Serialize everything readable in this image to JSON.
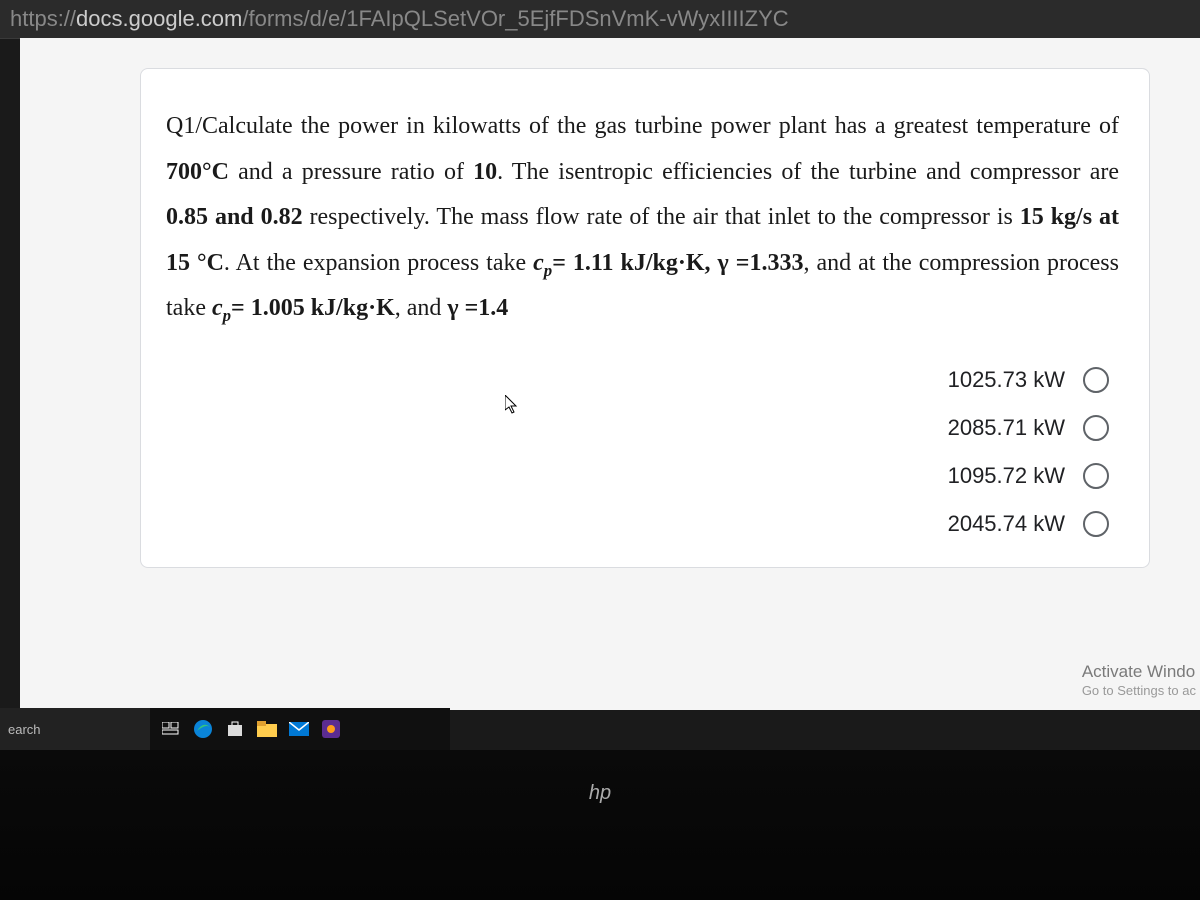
{
  "url": {
    "scheme": "https://",
    "host": "docs.google.com",
    "path": "/forms/d/e/1FAIpQLSetVOr_5EjfFDSnVmK-vWyxIIIIZYC"
  },
  "question": {
    "html": "Q1/Calculate the power in kilowatts of the gas turbine power plant has a greatest temperature of <b>700°C</b> and a pressure ratio of <b>10</b>. The isentropic efficiencies of the turbine and compressor are <b>0.85 and 0.82</b> respectively. The mass flow rate of the air that inlet to the compressor is <b>15 kg/s at 15 °C</b>. At the expansion process take <b><i>c<sub>p</sub></i>= 1.11 kJ/kg·K, γ =1.333</b>, and at the compression process take <b><i>c<sub>p</sub></i>= 1.005 kJ/kg·K</b>, and <b>γ =1.4</b>"
  },
  "options": [
    {
      "label": "1025.73 kW"
    },
    {
      "label": "2085.71 kW"
    },
    {
      "label": "1095.72 kW"
    },
    {
      "label": "2045.74 kW"
    }
  ],
  "watermark": {
    "line1": "Activate Windo",
    "line2": "Go to Settings to ac"
  },
  "searchPlaceholder": "earch",
  "hpLabel": "hp",
  "tray": {
    "caret": "^"
  },
  "colors": {
    "page_bg": "#f5f5f5",
    "card_bg": "#ffffff",
    "text": "#202124",
    "radio_border": "#5f6368",
    "url_bg": "#2b2b2b"
  }
}
